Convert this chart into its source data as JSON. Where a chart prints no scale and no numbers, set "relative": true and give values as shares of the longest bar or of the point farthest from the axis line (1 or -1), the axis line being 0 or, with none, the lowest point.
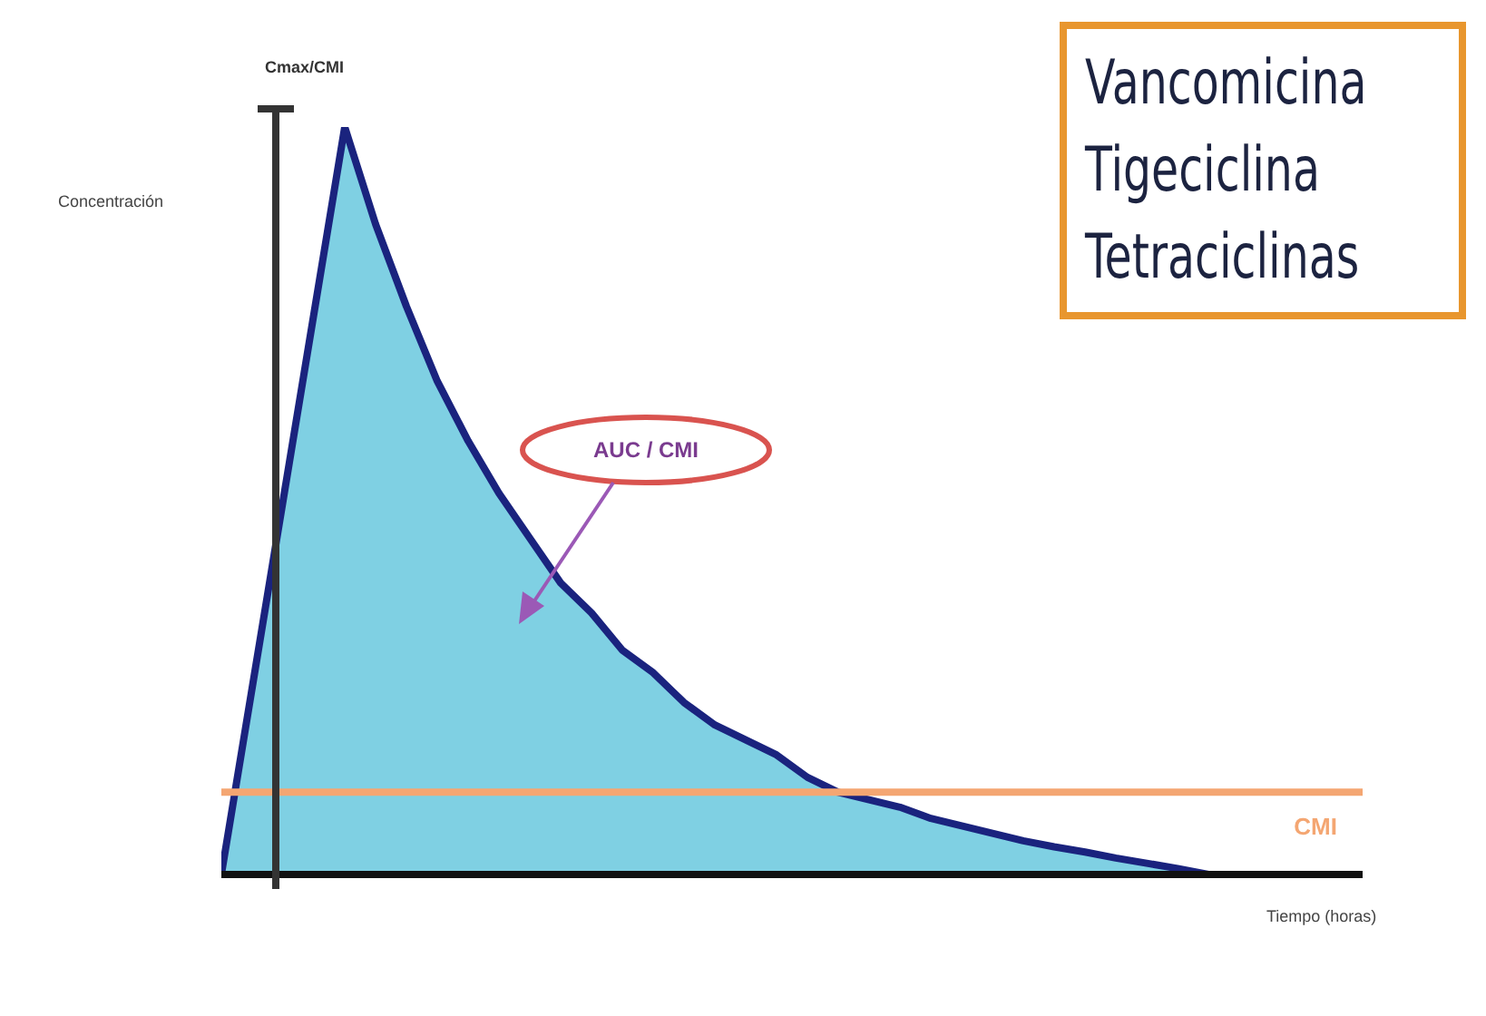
{
  "chart_data": {
    "type": "area",
    "relative": true,
    "ylabel": "Concentración",
    "xlabel": "Tiempo (horas)",
    "categories": [
      null,
      null,
      null,
      null,
      null,
      null,
      null,
      null,
      null,
      null,
      null,
      null,
      null,
      null,
      null,
      null,
      null,
      null,
      null,
      null,
      null,
      null,
      null,
      null,
      null,
      null,
      null,
      null,
      null,
      null,
      null,
      null,
      null,
      null,
      null,
      null,
      null,
      null
    ],
    "series": [
      {
        "color": "#7fd0e3",
        "values": [
          0,
          0.25,
          0.5,
          0.75,
          1,
          0.87,
          0.76,
          0.66,
          0.58,
          0.51,
          0.45,
          0.39,
          0.35,
          0.3,
          0.27,
          0.23,
          0.2,
          0.18,
          0.16,
          0.13,
          0.11,
          0.1,
          0.09,
          0.075,
          0.065,
          0.055,
          0.045,
          0.037,
          0.03,
          0.022,
          0.015,
          0.008,
          0,
          null,
          null,
          null,
          null,
          null
        ]
      }
    ],
    "ref_lines": [
      {
        "axis": "y",
        "value": 0.11,
        "label": "CMI",
        "color": "#f4a672"
      }
    ],
    "annotations": [
      "Cmax/CMI",
      "AUC / CMI",
      "Vancomicina",
      "Tigeciclina",
      "Tetraciclinas"
    ]
  }
}
